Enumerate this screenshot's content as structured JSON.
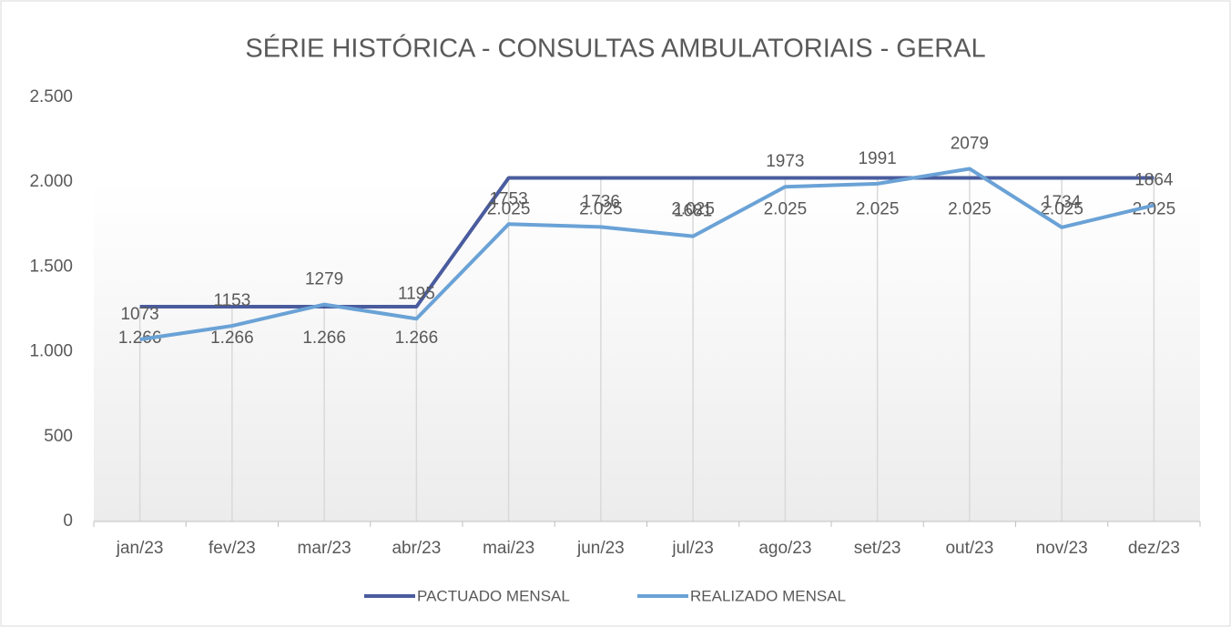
{
  "chart_data": {
    "type": "line",
    "title": "SÉRIE HISTÓRICA - CONSULTAS AMBULATORIAIS - GERAL",
    "categories": [
      "jan/23",
      "fev/23",
      "mar/23",
      "abr/23",
      "mai/23",
      "jun/23",
      "jul/23",
      "ago/23",
      "set/23",
      "out/23",
      "nov/23",
      "dez/23"
    ],
    "series": [
      {
        "name": "PACTUADO MENSAL",
        "color": "#4a5c9e",
        "values": [
          1266,
          1266,
          1266,
          1266,
          2025,
          2025,
          2025,
          2025,
          2025,
          2025,
          2025,
          2025
        ],
        "value_labels": [
          "1.266",
          "1.266",
          "1.266",
          "1.266",
          "2.025",
          "2.025",
          "2.025",
          "2.025",
          "2.025",
          "2.025",
          "2.025",
          "2.025"
        ]
      },
      {
        "name": "REALIZADO MENSAL",
        "color": "#6aa2d6",
        "values": [
          1073,
          1153,
          1279,
          1195,
          1753,
          1736,
          1681,
          1973,
          1991,
          2079,
          1734,
          1864
        ]
      }
    ],
    "ylim": [
      0,
      2500
    ],
    "yticks": [
      0,
      500,
      {
        "value": 1000,
        "label": "1.000"
      },
      {
        "value": 1500,
        "label": "1.500"
      },
      {
        "value": 2000,
        "label": "2.000"
      },
      {
        "value": 2500,
        "label": "2.500"
      }
    ],
    "legend": "bottom"
  }
}
